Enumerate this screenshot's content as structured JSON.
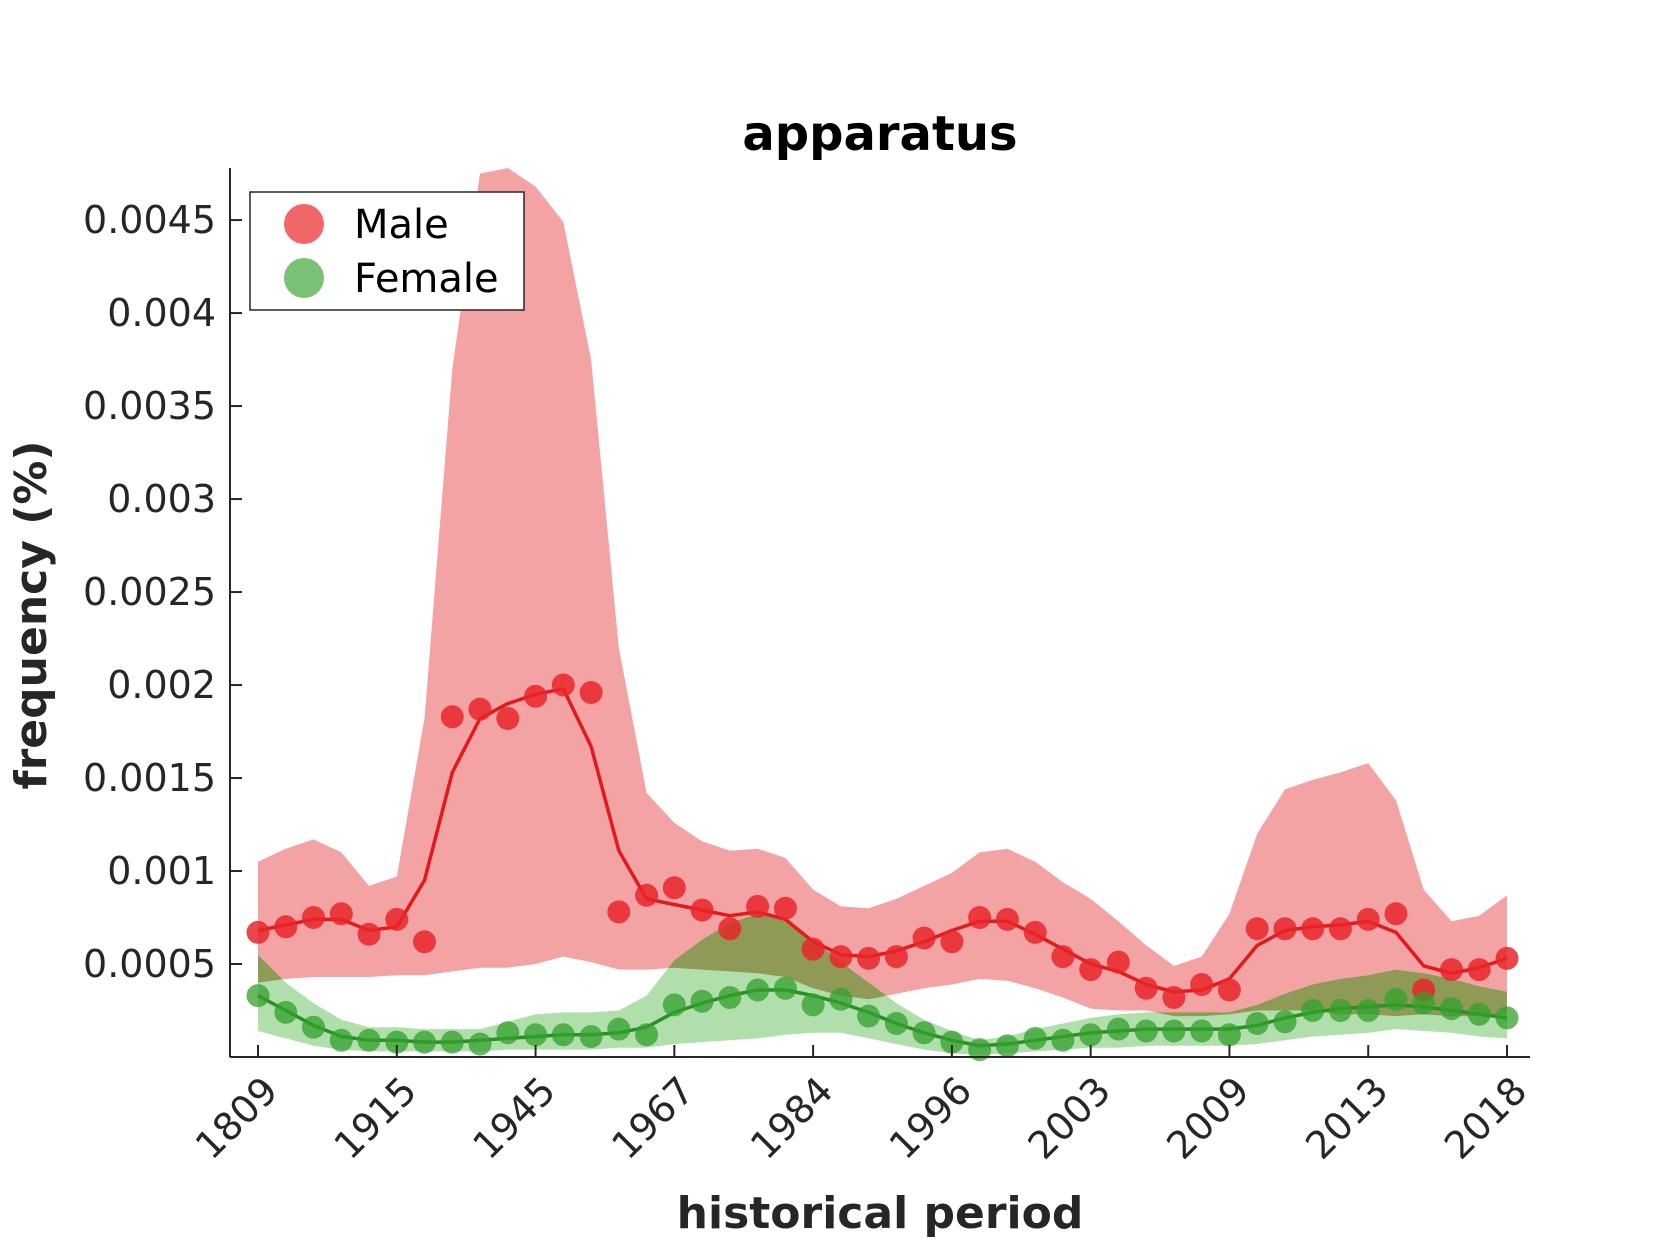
{
  "chart_data": {
    "type": "line",
    "title": "apparatus",
    "xlabel": "historical period",
    "ylabel": "frequency (%)",
    "ylim": [
      0,
      0.00478
    ],
    "y_ticks": [
      0.0005,
      0.001,
      0.0015,
      0.002,
      0.0025,
      0.003,
      0.0035,
      0.004,
      0.0045
    ],
    "y_tick_labels": [
      "0.0005",
      "0.001",
      "0.0015",
      "0.002",
      "0.0025",
      "0.003",
      "0.0035",
      "0.004",
      "0.0045"
    ],
    "x_tick_labels": [
      "1809",
      "1915",
      "1945",
      "1967",
      "1984",
      "1996",
      "2003",
      "2009",
      "2013",
      "2018"
    ],
    "x_tick_positions": [
      0,
      5,
      10,
      15,
      20,
      25,
      30,
      35,
      40,
      45
    ],
    "legend": {
      "position": "top-left",
      "entries": [
        "Male",
        "Female"
      ]
    },
    "colors": {
      "male_point": "#e8262a",
      "male_line": "#e31a1c",
      "male_band": "#f4a3a5",
      "female_point": "#33a02c",
      "female_line": "#2b8f24",
      "female_band": "#a9dba3",
      "overlap": "#8e9a55"
    },
    "series": [
      {
        "name": "Male",
        "points": [
          0.00067,
          0.0007,
          0.00075,
          0.00077,
          0.00066,
          0.00074,
          0.00062,
          0.00183,
          0.00187,
          0.00182,
          0.00194,
          0.002,
          0.00196,
          0.00078,
          0.00087,
          0.00091,
          0.00079,
          0.00069,
          0.00081,
          0.0008,
          0.00058,
          0.00054,
          0.00053,
          0.00054,
          0.00064,
          0.00062,
          0.00075,
          0.00074,
          0.00067,
          0.00054,
          0.00047,
          0.00051,
          0.00037,
          0.00032,
          0.00039,
          0.00036,
          0.00069,
          0.00069,
          0.00069,
          0.00069,
          0.00074,
          0.00077,
          0.00036,
          0.00047,
          0.00047,
          0.00053
        ],
        "smoothed": [
          0.00068,
          0.00071,
          0.00074,
          0.00074,
          0.00068,
          0.0007,
          0.00095,
          0.00153,
          0.00182,
          0.0019,
          0.00195,
          0.00198,
          0.00167,
          0.00111,
          0.00085,
          0.00082,
          0.00079,
          0.00076,
          0.00078,
          0.00074,
          0.00062,
          0.00055,
          0.00054,
          0.00057,
          0.00062,
          0.00068,
          0.00073,
          0.00073,
          0.00066,
          0.00058,
          0.0005,
          0.00046,
          0.00039,
          0.00035,
          0.00036,
          0.00042,
          0.0006,
          0.00068,
          0.0007,
          0.00071,
          0.00073,
          0.00067,
          0.00049,
          0.00045,
          0.00048,
          0.00053
        ],
        "band_upper": [
          0.00105,
          0.00112,
          0.00117,
          0.0011,
          0.00092,
          0.00097,
          0.00182,
          0.0037,
          0.00475,
          0.00478,
          0.00468,
          0.00449,
          0.00375,
          0.0022,
          0.00142,
          0.00126,
          0.00116,
          0.00111,
          0.00112,
          0.00107,
          0.0009,
          0.00081,
          0.0008,
          0.00085,
          0.00092,
          0.00099,
          0.0011,
          0.00112,
          0.00105,
          0.00094,
          0.00085,
          0.00073,
          0.0006,
          0.00049,
          0.00054,
          0.00077,
          0.0012,
          0.00144,
          0.00149,
          0.00153,
          0.00158,
          0.00138,
          0.0009,
          0.00073,
          0.00076,
          0.00087
        ],
        "band_lower": [
          0.0004,
          0.00042,
          0.00043,
          0.00043,
          0.00043,
          0.00044,
          0.00044,
          0.00046,
          0.00048,
          0.00048,
          0.0005,
          0.00054,
          0.00051,
          0.00047,
          0.00047,
          0.00048,
          0.00047,
          0.00046,
          0.00045,
          0.00043,
          0.00037,
          0.00033,
          0.00031,
          0.00034,
          0.00037,
          0.00039,
          0.00042,
          0.00041,
          0.00037,
          0.00032,
          0.00026,
          0.00025,
          0.00025,
          0.00022,
          0.00022,
          0.00023,
          0.00025,
          0.00025,
          0.00025,
          0.00023,
          0.00023,
          0.00022,
          0.00023,
          0.00022,
          0.00022,
          0.00023
        ]
      },
      {
        "name": "Female",
        "points": [
          0.00033,
          0.00024,
          0.00016,
          9e-05,
          9e-05,
          8e-05,
          8e-05,
          8e-05,
          7e-05,
          0.00013,
          0.00012,
          0.00012,
          0.00011,
          0.00015,
          0.00012,
          0.00028,
          0.0003,
          0.00032,
          0.00036,
          0.00037,
          0.00028,
          0.00031,
          0.00022,
          0.00018,
          0.00013,
          8e-05,
          4e-05,
          6e-05,
          0.0001,
          9e-05,
          0.00012,
          0.00015,
          0.00014,
          0.00014,
          0.00014,
          0.00012,
          0.00018,
          0.00019,
          0.00025,
          0.00025,
          0.00025,
          0.00031,
          0.00029,
          0.00026,
          0.00023,
          0.00021
        ],
        "smoothed": [
          0.00033,
          0.00025,
          0.00017,
          0.00011,
          9e-05,
          9e-05,
          8e-05,
          8e-05,
          9e-05,
          0.0001,
          0.00011,
          0.00012,
          0.00012,
          0.00013,
          0.00016,
          0.00024,
          0.00029,
          0.00033,
          0.00036,
          0.00036,
          0.00033,
          0.00029,
          0.00024,
          0.00018,
          0.00013,
          9e-05,
          6e-05,
          7e-05,
          9e-05,
          0.00011,
          0.00013,
          0.00014,
          0.00015,
          0.00015,
          0.00015,
          0.00015,
          0.00017,
          0.00021,
          0.00024,
          0.00026,
          0.00027,
          0.00028,
          0.00027,
          0.00025,
          0.00023,
          0.00021
        ],
        "band_upper": [
          0.00055,
          0.0004,
          0.00029,
          0.0002,
          0.00016,
          0.00016,
          0.00015,
          0.00015,
          0.00015,
          0.00019,
          0.00023,
          0.00024,
          0.00024,
          0.00025,
          0.00033,
          0.00052,
          0.00063,
          0.00072,
          0.00077,
          0.00073,
          0.00063,
          0.00051,
          0.0004,
          0.00029,
          0.0002,
          0.00014,
          9e-05,
          0.00011,
          0.00015,
          0.00018,
          0.00021,
          0.00023,
          0.00024,
          0.00024,
          0.00024,
          0.00024,
          0.00028,
          0.00034,
          0.00039,
          0.00042,
          0.00044,
          0.00047,
          0.00045,
          0.00042,
          0.00038,
          0.00035
        ],
        "band_lower": [
          0.00014,
          0.0001,
          6e-05,
          4e-05,
          3e-05,
          3e-05,
          3e-05,
          3e-05,
          3e-05,
          4e-05,
          4e-05,
          4e-05,
          4e-05,
          5e-05,
          5e-05,
          7e-05,
          8e-05,
          9e-05,
          0.0001,
          0.00012,
          0.00013,
          0.00013,
          0.0001,
          7e-05,
          4e-05,
          2e-05,
          1e-05,
          2e-05,
          3e-05,
          4e-05,
          5e-05,
          5e-05,
          6e-05,
          6e-05,
          6e-05,
          6e-05,
          7e-05,
          9e-05,
          0.00011,
          0.00012,
          0.00013,
          0.00015,
          0.00014,
          0.00013,
          0.00011,
          0.0001
        ]
      }
    ]
  }
}
